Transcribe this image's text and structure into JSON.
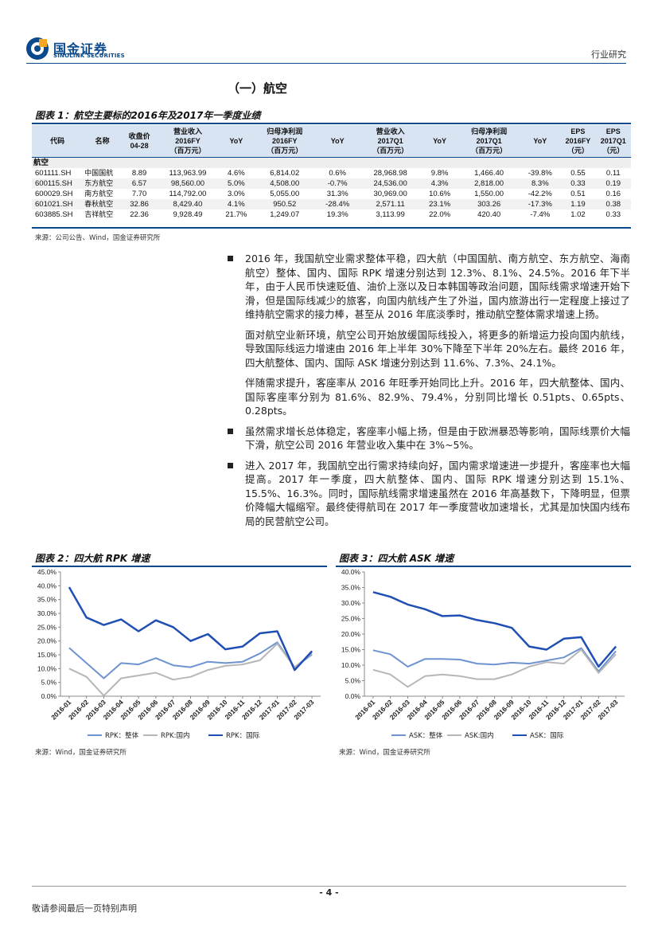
{
  "header": {
    "logo_cn": "国金证券",
    "logo_en": "SINOLINK SECURITIES",
    "right_label": "行业研究"
  },
  "section_title": "（一）航空",
  "table_figure": {
    "title": "图表 1：航空主要标的2016年及2017年一季度业绩",
    "headers": [
      [
        "代码",
        ""
      ],
      [
        "名称",
        ""
      ],
      [
        "收盘价",
        "04-28"
      ],
      [
        "营业收入",
        "2016FY",
        "（百万元）"
      ],
      [
        "YoY"
      ],
      [
        "归母净利润",
        "2016FY",
        "（百万元）"
      ],
      [
        "YoY"
      ],
      [
        "营业收入",
        "2017Q1",
        "（百万元）"
      ],
      [
        "YoY"
      ],
      [
        "归母净利润",
        "2017Q1",
        "（百万元）"
      ],
      [
        "YoY"
      ],
      [
        "EPS",
        "2016FY",
        "（元）"
      ],
      [
        "EPS",
        "2017Q1",
        "（元）"
      ]
    ],
    "group_label": "航空",
    "rows": [
      [
        "601111.SH",
        "中国国航",
        "8.89",
        "113,963.99",
        "4.6%",
        "6,814.02",
        "0.6%",
        "28,968.98",
        "9.8%",
        "1,466.40",
        "-39.8%",
        "0.55",
        "0.11"
      ],
      [
        "600115.SH",
        "东方航空",
        "6.57",
        "98,560.00",
        "5.0%",
        "4,508.00",
        "-0.7%",
        "24,536.00",
        "4.3%",
        "2,818.00",
        "8.3%",
        "0.33",
        "0.19"
      ],
      [
        "600029.SH",
        "南方航空",
        "7.70",
        "114,792.00",
        "3.0%",
        "5,055.00",
        "31.3%",
        "30,969.00",
        "10.6%",
        "1,550.00",
        "-42.2%",
        "0.51",
        "0.16"
      ],
      [
        "601021.SH",
        "春秋航空",
        "32.86",
        "8,429.40",
        "4.1%",
        "950.52",
        "-28.4%",
        "2,571.11",
        "23.1%",
        "303.26",
        "-17.3%",
        "1.19",
        "0.38"
      ],
      [
        "603885.SH",
        "吉祥航空",
        "22.36",
        "9,928.49",
        "21.7%",
        "1,249.07",
        "19.3%",
        "3,113.99",
        "22.0%",
        "420.40",
        "-7.4%",
        "1.02",
        "0.33"
      ]
    ],
    "source": "来源：公司公告、Wind，国金证券研究所"
  },
  "text": {
    "p1": "2016 年，我国航空业需求整体平稳，四大航（中国国航、南方航空、东方航空、海南航空）整体、国内、国际 RPK 增速分别达到 12.3%、8.1%、24.5%。2016 年下半年，由于人民币快速贬值、油价上涨以及日本韩国等政治问题，国际线需求增速开始下滑，但是国际线减少的旅客，向国内航线产生了外溢，国内旅游出行一定程度上接过了维持航空需求的接力棒，甚至从 2016 年底淡季时，推动航空整体需求增速上扬。",
    "p2": "面对航空业新环境，航空公司开始放缓国际线投入，将更多的新增运力投向国内航线，导致国际线运力增速由 2016 年上半年 30%下降至下半年 20%左右。最终 2016 年，四大航整体、国内、国际 ASK 增速分别达到 11.6%、7.3%、24.1%。",
    "p3": "伴随需求提升，客座率从 2016 年旺季开始同比上升。2016 年，四大航整体、国内、国际客座率分别为 81.6%、82.9%、79.4%，分别同比增长 0.51pts、0.65pts、0.28pts。",
    "p4": "虽然需求增长总体稳定，客座率小幅上扬，但是由于欧洲暴恐等影响，国际线票价大幅下滑，航空公司 2016 年营业收入集中在 3%~5%。",
    "p5": "进入 2017 年，我国航空出行需求持续向好，国内需求增速进一步提升，客座率也大幅提高。2017 年一季度，四大航整体、国内、国际 RPK 增速分别达到 15.1%、15.5%、16.3%。同时，国际航线需求增速虽然在 2016 年高基数下，下降明显，但票价降幅大幅缩窄。最终使得航司在 2017 年一季度营收加速增长，尤其是加快国内线布局的民营航空公司。"
  },
  "chart_data": [
    {
      "type": "line",
      "title": "图表 2：四大航 RPK 增速",
      "categories": [
        "2016-01",
        "2016-02",
        "2016-03",
        "2016-04",
        "2016-05",
        "2016-06",
        "2016-07",
        "2016-08",
        "2016-09",
        "2016-10",
        "2016-11",
        "2016-12",
        "2017-01",
        "2017-02",
        "2017-03"
      ],
      "ylim": [
        0,
        45
      ],
      "yticks": [
        "0.0%",
        "5.0%",
        "10.0%",
        "15.0%",
        "20.0%",
        "25.0%",
        "30.0%",
        "35.0%",
        "40.0%",
        "45.0%"
      ],
      "series": [
        {
          "name": "RPK：整体",
          "color": "#6d93d1",
          "width": 2,
          "values": [
            17.5,
            12,
            6.5,
            12,
            11.5,
            13.8,
            11.2,
            10.5,
            12.5,
            12,
            12.5,
            15.5,
            19.5,
            10.5,
            15.1
          ]
        },
        {
          "name": "RPK:国内",
          "color": "#b7b7b7",
          "width": 2,
          "values": [
            10,
            7,
            0.2,
            6.5,
            7.5,
            8.5,
            6,
            7,
            9.5,
            11,
            11.5,
            13,
            19,
            10.5,
            15.5
          ]
        },
        {
          "name": "RPK：国际",
          "color": "#1f4fb4",
          "width": 2.5,
          "values": [
            39.5,
            28.5,
            25.8,
            27.8,
            23.5,
            27.5,
            25,
            20,
            22.5,
            17,
            18,
            22.8,
            23.5,
            9.5,
            16.3
          ]
        }
      ],
      "source": "来源：Wind，国金证券研究所"
    },
    {
      "type": "line",
      "title": "图表 3：四大航 ASK 增速",
      "categories": [
        "2016-01",
        "2016-02",
        "2016-03",
        "2016-04",
        "2016-05",
        "2016-06",
        "2016-07",
        "2016-08",
        "2016-09",
        "2016-10",
        "2016-11",
        "2016-12",
        "2017-01",
        "2017-02",
        "2017-03"
      ],
      "ylim": [
        0,
        40
      ],
      "yticks": [
        "0.0%",
        "5.0%",
        "10.0%",
        "15.0%",
        "20.0%",
        "25.0%",
        "30.0%",
        "35.0%",
        "40.0%"
      ],
      "series": [
        {
          "name": "ASK：整体",
          "color": "#6d93d1",
          "width": 2,
          "values": [
            14.8,
            13.5,
            9.5,
            12,
            12,
            11.8,
            10.5,
            10.2,
            10.8,
            10.5,
            11.5,
            12.5,
            15.5,
            8,
            14.5
          ]
        },
        {
          "name": "ASK:国内",
          "color": "#b7b7b7",
          "width": 2,
          "values": [
            8.5,
            7,
            3,
            6.5,
            7,
            6.5,
            5.5,
            5.5,
            7,
            9.5,
            11,
            10.5,
            15,
            7.5,
            13.5
          ]
        },
        {
          "name": "ASK：国际",
          "color": "#1f4fb4",
          "width": 2.5,
          "values": [
            33.5,
            32,
            29.5,
            28,
            25.8,
            26,
            24.5,
            23.5,
            22,
            16,
            15,
            18.5,
            19,
            9.5,
            16
          ]
        }
      ],
      "source": "来源：Wind，国金证券研究所"
    }
  ],
  "footer": {
    "page_number": "- 4 -",
    "note": "敬请参阅最后一页特别声明"
  }
}
